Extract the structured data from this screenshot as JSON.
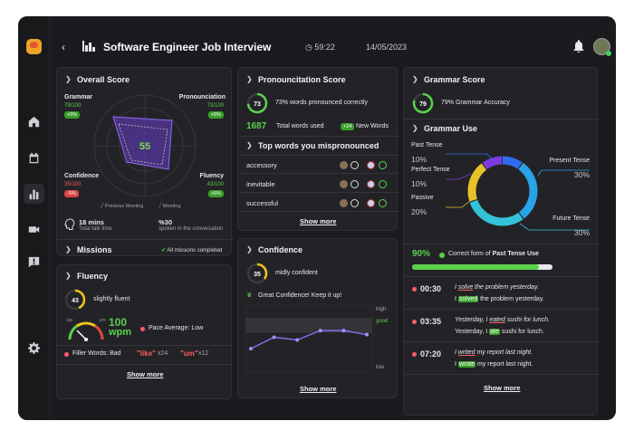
{
  "header": {
    "title": "Software Engineer Job Interview",
    "timer": "59:22",
    "date": "14/05/2023"
  },
  "overall": {
    "title": "Overall Score",
    "score": "55",
    "grammar": {
      "label": "Grammar",
      "value": "79/100",
      "delta": "+5%"
    },
    "pron": {
      "label": "Pronounciation",
      "value": "73/100",
      "delta": "+5%"
    },
    "conf": {
      "label": "Confidence",
      "value": "35/100",
      "delta": "-5%"
    },
    "flu": {
      "label": "Fluency",
      "value": "43/100",
      "delta": "+5%"
    },
    "legend_prev": "Previous Meeting",
    "legend_cur": "Meeting",
    "talk_value": "18 mins",
    "talk_label": "Total talk time",
    "pct_value": "%30",
    "pct_label": "spoken in the conversation"
  },
  "missions": {
    "title": "Missions",
    "status": "All missions completed"
  },
  "fluency": {
    "title": "Fluency",
    "score": "43",
    "desc": "slightly fluent",
    "gauge_min": "110",
    "gauge_max": "170",
    "wpm_value": "100",
    "wpm_unit": "wpm",
    "pace": "Pace Average: Low",
    "filler_label": "Filler Words: Bad",
    "filler1": "\"like\"",
    "filler1_count": "x24",
    "filler2": "\"um\"",
    "filler2_count": "x12",
    "more": "Show more"
  },
  "pron": {
    "title": "Pronouncitation Score",
    "score": "73",
    "desc": "73% words pronounced correctly",
    "total": "1687",
    "total_label": "Total words used",
    "new": "+24",
    "new_label": "New Words",
    "top_title": "Top words you mispronounced",
    "words": [
      "accessory",
      "inevitable",
      "successful"
    ],
    "more": "Show more"
  },
  "confidence": {
    "title": "Confidence",
    "score": "35",
    "desc": "midly confident",
    "tip": "Great Confidence! Keep it up!",
    "y_high": "high",
    "y_good": "good",
    "y_low": "low",
    "more": "Show more"
  },
  "chart_data": {
    "type": "line",
    "values": [
      0.35,
      0.52,
      0.48,
      0.62,
      0.62,
      0.56
    ],
    "categories": [
      "1",
      "2",
      "3",
      "4",
      "5",
      "6"
    ],
    "ylabels": [
      "high",
      "good",
      "low"
    ]
  },
  "grammar": {
    "title": "Grammar Score",
    "score": "79",
    "desc": "79% Grammar Accuracy",
    "use_title": "Grammar Use",
    "donut": [
      {
        "label": "Past Tense",
        "value": "10%",
        "color": "#2f6df0"
      },
      {
        "label": "Perfect Tense",
        "value": "10%",
        "color": "#7c3ae0"
      },
      {
        "label": "Passive",
        "value": "20%",
        "color": "#e8c128"
      },
      {
        "label": "Present Tense",
        "value": "30%",
        "color": "#2aa3e6"
      },
      {
        "label": "Future Tense",
        "value": "30%",
        "color": "#34c2d8"
      }
    ],
    "correct_pct": "90%",
    "correct_label": "Correct form of ",
    "correct_bold": "Past Tense Use",
    "items": [
      {
        "time": "00:30",
        "wrong_pre": "I ",
        "wrong_word": "solve",
        "wrong_post": " the problem yesterday.",
        "fix_pre": "I ",
        "fix_word": "solved",
        "fix_post": " the problem yesterday."
      },
      {
        "time": "03:35",
        "wrong_pre": "Yesterday, I ",
        "wrong_word": "eated",
        "wrong_post": " sushi for lunch.",
        "fix_pre": "Yesterday, I ",
        "fix_word": "ate",
        "fix_post": " sushi for lunch."
      },
      {
        "time": "07:20",
        "wrong_pre": "I ",
        "wrong_word": "writed",
        "wrong_post": " my report last night.",
        "fix_pre": "I ",
        "fix_word": "wrote",
        "fix_post": " my report last night."
      }
    ],
    "more": "Show more"
  }
}
